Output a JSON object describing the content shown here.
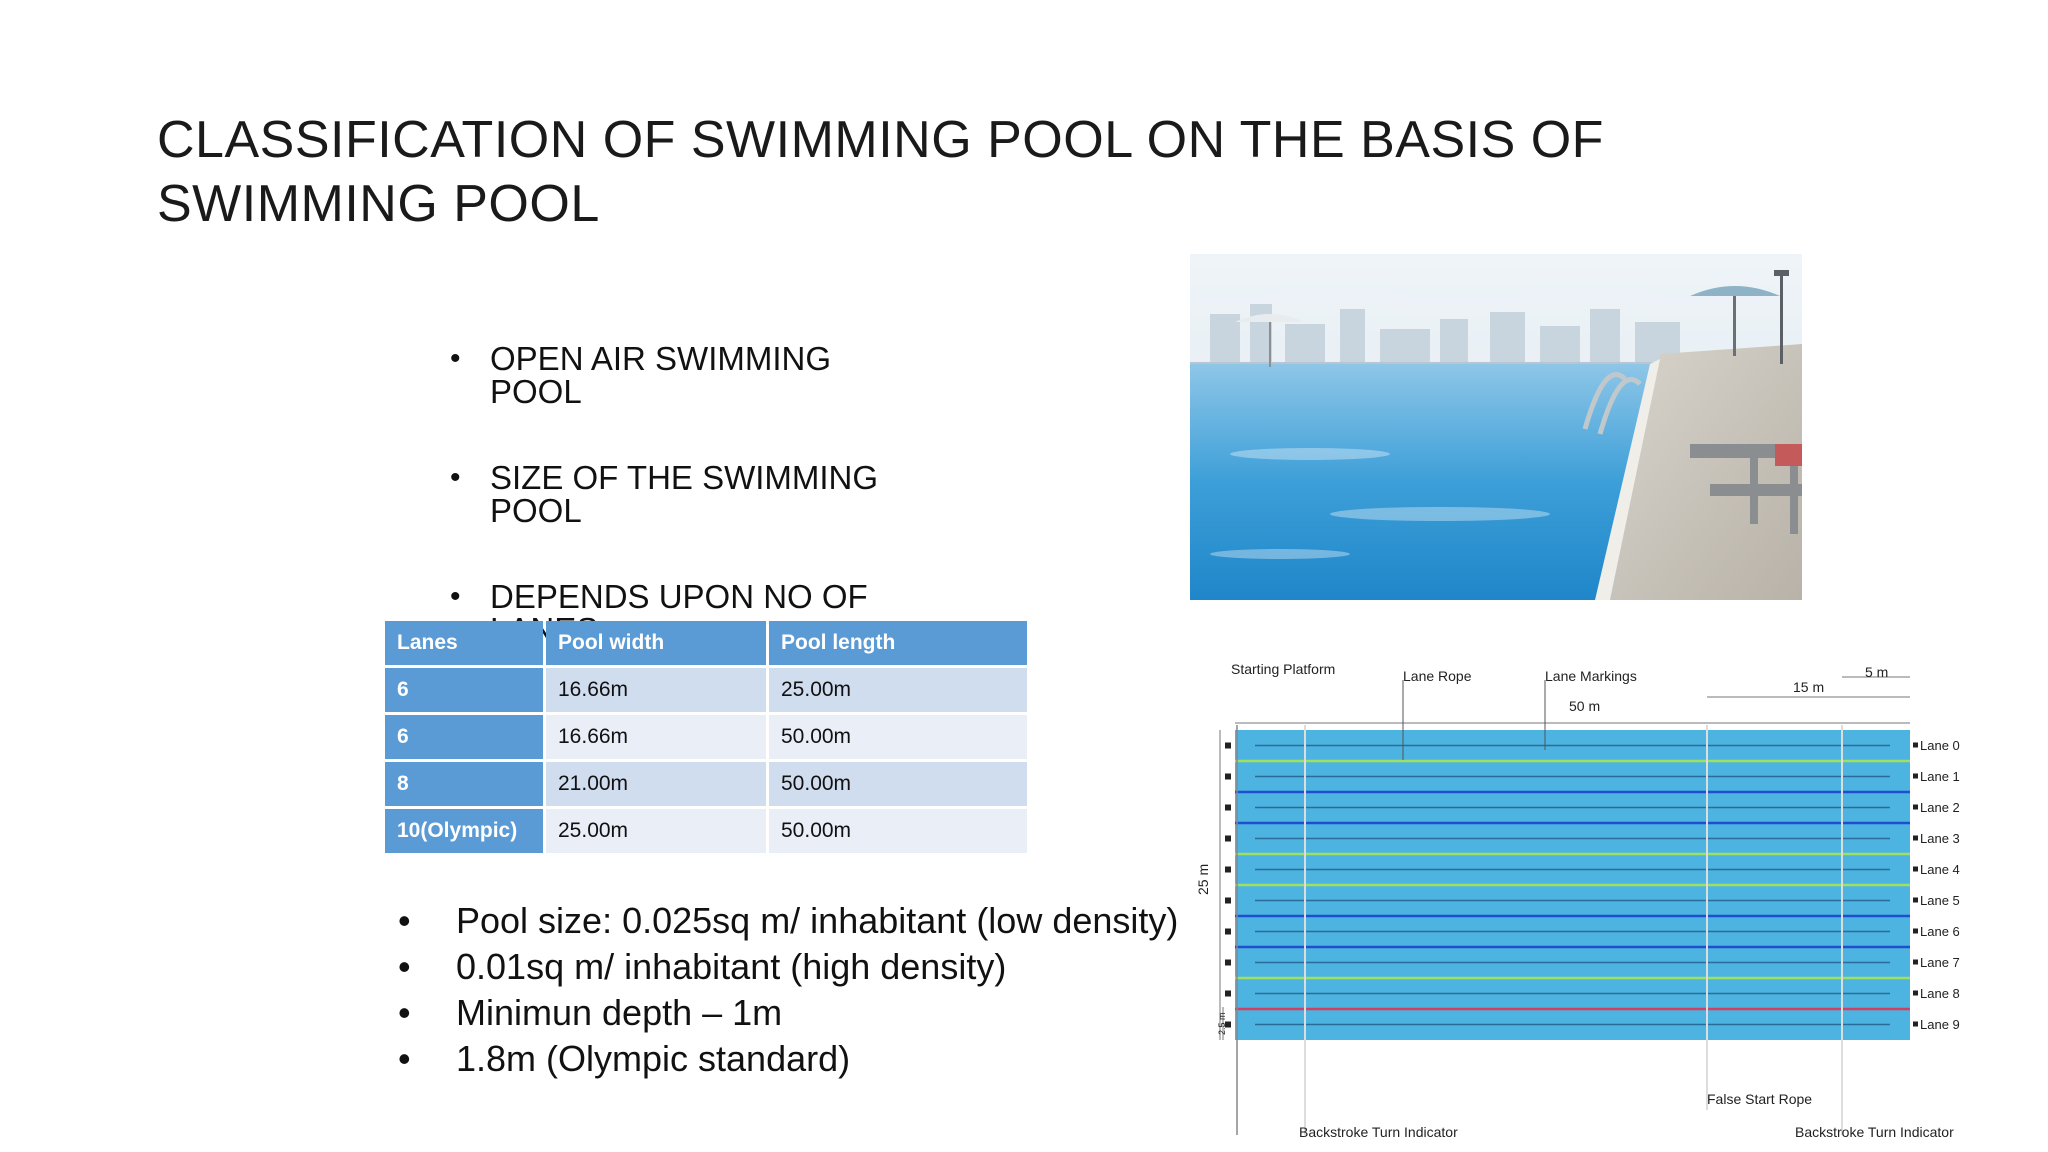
{
  "slide": {
    "title": "CLASSIFICATION OF SWIMMING POOL ON THE BASIS OF SWIMMING POOL"
  },
  "top_bullets": [
    "OPEN AIR SWIMMING POOL",
    "SIZE OF THE SWIMMING POOL",
    " DEPENDS UPON NO OF LANES"
  ],
  "table": {
    "headers": [
      "Lanes",
      "Pool width",
      "Pool length"
    ],
    "rows": [
      [
        "6",
        "16.66m",
        "25.00m"
      ],
      [
        "6",
        "16.66m",
        "50.00m"
      ],
      [
        "8",
        "21.00m",
        "50.00m"
      ],
      [
        "10(Olympic)",
        "25.00m",
        "50.00m"
      ]
    ]
  },
  "bottom_bullets": [
    "Pool size: 0.025sq m/ inhabitant (low density)",
    "0.01sq m/ inhabitant (high density)",
    "Minimun depth – 1m",
    "1.8m (Olympic standard)"
  ],
  "diagram": {
    "starting_platform": "Starting Platform",
    "lane_rope": "Lane Rope",
    "lane_markings": "Lane Markings",
    "length_label": "50 m",
    "dist_15": "15 m",
    "dist_5": "5 m",
    "width_label": "25 m",
    "lane_width_label": "2.5 m",
    "false_start": "False Start Rope",
    "backstroke_left": "Backstroke Turn Indicator",
    "backstroke_right": "Backstroke Turn Indicator",
    "lanes": [
      "Lane 0",
      "Lane 1",
      "Lane 2",
      "Lane 3",
      "Lane 4",
      "Lane 5",
      "Lane 6",
      "Lane 7",
      "Lane 8",
      "Lane 9"
    ]
  },
  "colors": {
    "table_header": "#5b9bd5",
    "pool_water": "#4db3e0",
    "lane_blue": "#1f4fd0",
    "lane_green": "#9fe060",
    "lane_red": "#d04060"
  }
}
